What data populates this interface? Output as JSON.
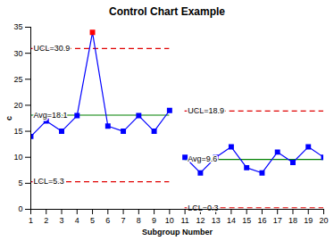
{
  "chart_data": {
    "type": "line",
    "title": "Control Chart Example",
    "x_label": "Subgroup Number",
    "y_label": "c",
    "x": [
      1,
      2,
      3,
      4,
      5,
      6,
      7,
      8,
      9,
      10,
      11,
      12,
      13,
      14,
      15,
      16,
      17,
      18,
      19,
      20
    ],
    "xlim": [
      1,
      20
    ],
    "xticks": [
      1,
      2,
      3,
      4,
      5,
      6,
      7,
      8,
      9,
      10,
      11,
      12,
      13,
      14,
      15,
      16,
      17,
      18,
      19,
      20
    ],
    "ylim": [
      0,
      35
    ],
    "yticks": [
      0,
      5,
      10,
      15,
      20,
      25,
      30,
      35
    ],
    "grid": false,
    "series": [
      {
        "color": "#0000ff",
        "marker": "square",
        "line_style": "solid",
        "values": [
          14,
          17,
          15,
          18,
          34,
          16,
          15,
          18,
          15,
          19,
          null,
          null,
          null,
          null,
          null,
          null,
          null,
          null,
          null,
          null
        ],
        "colors": [
          "#0000ff",
          "#0000ff",
          "#0000ff",
          "#0000ff",
          "#ff0000",
          "#0000ff",
          "#0000ff",
          "#0000ff",
          "#0000ff",
          "#0000ff",
          "#0000ff",
          "#0000ff",
          "#0000ff",
          "#0000ff",
          "#0000ff",
          "#0000ff",
          "#0000ff",
          "#0000ff",
          "#0000ff",
          "#0000ff"
        ]
      },
      {
        "color": "#0000ff",
        "marker": "square",
        "line_style": "solid",
        "values": [
          null,
          null,
          null,
          null,
          null,
          null,
          null,
          null,
          null,
          null,
          10,
          7,
          10,
          12,
          8,
          7,
          11,
          9,
          12,
          10
        ]
      }
    ],
    "control_limits": [
      {
        "text": "UCL=30.9",
        "value": 30.9,
        "x": [
          1,
          10
        ],
        "color": "#e00000",
        "line_style": "dashed"
      },
      {
        "text": "Avg=18.1",
        "value": 18.1,
        "x": [
          1,
          10
        ],
        "color": "#008000",
        "line_style": "solid"
      },
      {
        "text": "LCL=5.3",
        "value": 5.3,
        "x": [
          1,
          10
        ],
        "color": "#e00000",
        "line_style": "dashed"
      },
      {
        "text": "UCL=18.9",
        "value": 18.9,
        "x": [
          11,
          20
        ],
        "color": "#e00000",
        "line_style": "dashed"
      },
      {
        "text": "Avg=9.6",
        "value": 9.6,
        "x": [
          11,
          20
        ],
        "color": "#008000",
        "line_style": "solid"
      },
      {
        "text": "LCL=0.3",
        "value": 0.3,
        "x": [
          11,
          20
        ],
        "color": "#e00000",
        "line_style": "dashed"
      }
    ]
  }
}
